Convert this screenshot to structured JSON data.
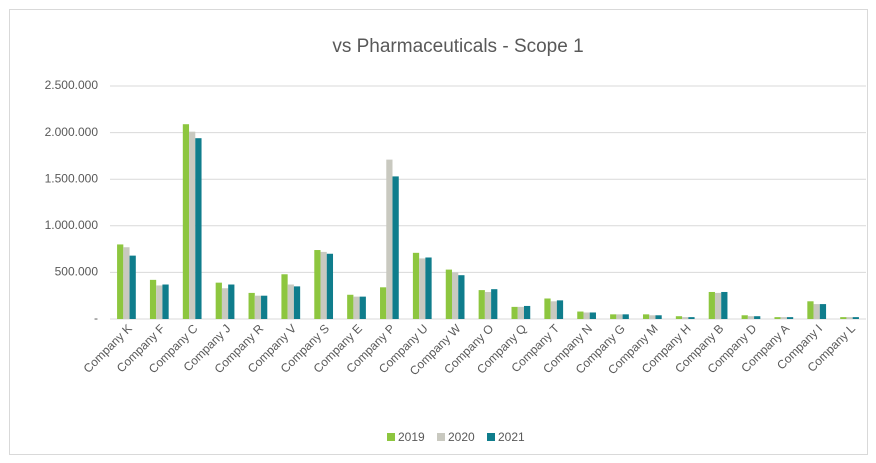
{
  "chart_data": {
    "type": "bar",
    "title": "vs Pharmaceuticals - Scope 1",
    "categories": [
      "Company K",
      "Company F",
      "Company C",
      "Company J",
      "Company R",
      "Company V",
      "Company S",
      "Company E",
      "Company P",
      "Company U",
      "Company W",
      "Company O",
      "Company Q",
      "Company T",
      "Company N",
      "Company G",
      "Company M",
      "Company H",
      "Company B",
      "Company D",
      "Company A",
      "Company I",
      "Company L"
    ],
    "series": [
      {
        "name": "2019",
        "color": "#8dc63f",
        "values": [
          800000,
          420000,
          2090000,
          390000,
          280000,
          480000,
          740000,
          260000,
          340000,
          710000,
          530000,
          310000,
          130000,
          220000,
          80000,
          50000,
          50000,
          30000,
          290000,
          40000,
          20000,
          190000,
          20000
        ]
      },
      {
        "name": "2020",
        "color": "#c9c9c0",
        "values": [
          770000,
          360000,
          2010000,
          330000,
          250000,
          370000,
          720000,
          240000,
          1710000,
          650000,
          500000,
          290000,
          130000,
          190000,
          70000,
          50000,
          40000,
          20000,
          280000,
          30000,
          20000,
          160000,
          20000
        ]
      },
      {
        "name": "2021",
        "color": "#0f7d8c",
        "values": [
          680000,
          370000,
          1940000,
          370000,
          250000,
          350000,
          700000,
          240000,
          1530000,
          660000,
          470000,
          320000,
          140000,
          200000,
          70000,
          50000,
          40000,
          20000,
          290000,
          30000,
          20000,
          160000,
          20000
        ]
      }
    ],
    "ylim": [
      0,
      2500000
    ],
    "yticks": [
      {
        "value": 0,
        "label": "-"
      },
      {
        "value": 500000,
        "label": "500.000"
      },
      {
        "value": 1000000,
        "label": "1.000.000"
      },
      {
        "value": 1500000,
        "label": "1.500.000"
      },
      {
        "value": 2000000,
        "label": "2.000.000"
      },
      {
        "value": 2500000,
        "label": "2.500.000"
      }
    ],
    "grid": true,
    "legend": "bottom"
  }
}
